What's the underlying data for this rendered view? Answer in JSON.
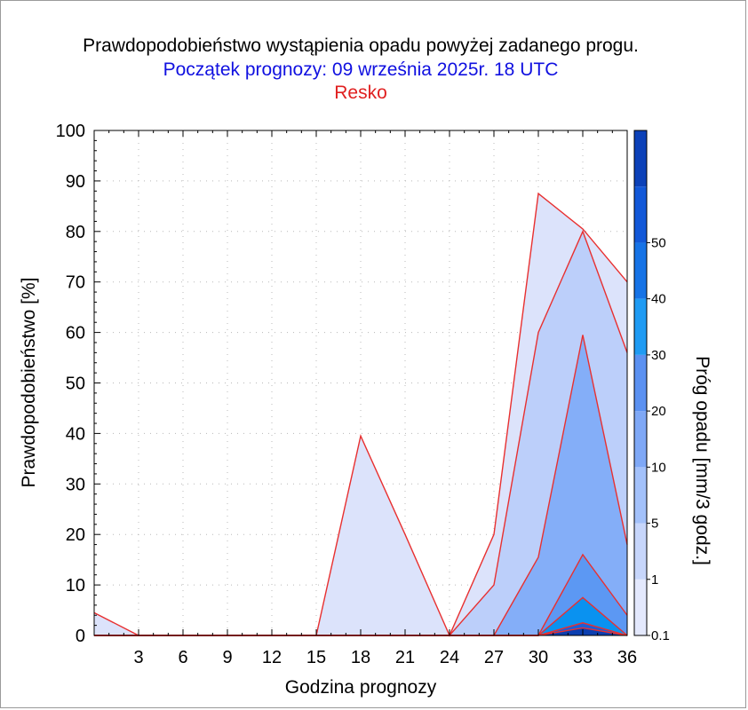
{
  "title": "Prawdopodobieństwo wystąpienia opadu powyżej zadanego progu.",
  "subtitle": "Początek prognozy: 09 września 2025r. 18 UTC",
  "station": "Resko",
  "colors": {
    "title": "#000000",
    "subtitle": "#1010e0",
    "station": "#e02020",
    "contour_line": "#e83030"
  },
  "chart_data": {
    "type": "area",
    "title": "Prawdopodobieństwo wystąpienia opadu powyżej zadanego progu.",
    "xlabel": "Godzina prognozy",
    "ylabel": "Prawdopodobieństwo [%]",
    "xlim": [
      0,
      36
    ],
    "ylim": [
      0,
      100
    ],
    "x_ticks": [
      3,
      6,
      9,
      12,
      15,
      18,
      21,
      24,
      27,
      30,
      33,
      36
    ],
    "y_ticks": [
      0,
      10,
      20,
      30,
      40,
      50,
      60,
      70,
      80,
      90,
      100
    ],
    "grid": true,
    "x": [
      0,
      3,
      6,
      9,
      12,
      15,
      18,
      21,
      24,
      27,
      30,
      33,
      36
    ],
    "series": [
      {
        "name": "0.1",
        "color": "#dce3fb",
        "values": [
          4.5,
          0,
          0,
          0,
          0,
          0,
          39.5,
          20,
          0,
          20,
          87.5,
          80.5,
          70
        ]
      },
      {
        "name": "1",
        "color": "#bccffa",
        "values": [
          0,
          0,
          0,
          0,
          0,
          0,
          0,
          0,
          0,
          10,
          60,
          80,
          56
        ]
      },
      {
        "name": "5",
        "color": "#84aef8",
        "values": [
          0,
          0,
          0,
          0,
          0,
          0,
          0,
          0,
          0,
          0,
          15.5,
          59.5,
          18
        ]
      },
      {
        "name": "10",
        "color": "#5c98f3",
        "values": [
          0,
          0,
          0,
          0,
          0,
          0,
          0,
          0,
          0,
          0,
          0,
          16,
          4
        ]
      },
      {
        "name": "20",
        "color": "#0a92f0",
        "values": [
          0,
          0,
          0,
          0,
          0,
          0,
          0,
          0,
          0,
          0,
          0,
          7.5,
          0
        ]
      },
      {
        "name": "30",
        "color": "#1a5ed8",
        "values": [
          0,
          0,
          0,
          0,
          0,
          0,
          0,
          0,
          0,
          0,
          0,
          2.5,
          0
        ]
      },
      {
        "name": "40",
        "color": "#0c3fb0",
        "values": [
          0,
          0,
          0,
          0,
          0,
          0,
          0,
          0,
          0,
          0,
          0,
          1.5,
          0
        ]
      }
    ],
    "colorbar": {
      "label": "Próg opadu [mm/3 godz.]",
      "tick_labels": [
        "0.1",
        "1",
        "5",
        "10",
        "20",
        "30",
        "40",
        "50"
      ],
      "colors": [
        "#e4e9fd",
        "#c7d6fb",
        "#a3c1fa",
        "#7fa8f6",
        "#5b91f1",
        "#1f9bf3",
        "#1673e6",
        "#1258d8",
        "#0c41b8"
      ]
    }
  }
}
